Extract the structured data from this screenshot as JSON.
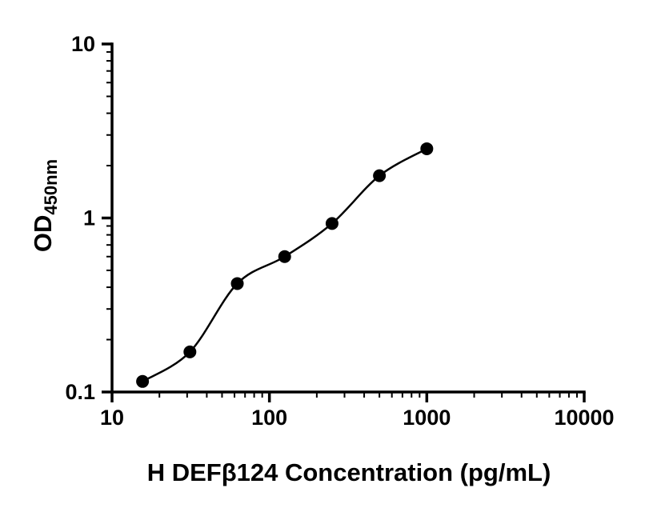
{
  "chart_data": {
    "type": "scatter",
    "title": "",
    "xlabel": "H DEFβ124 Concentration (pg/mL)",
    "ylabel_main": "OD",
    "ylabel_sub": "450nm",
    "x_scale": "log",
    "y_scale": "log",
    "xlim": [
      10,
      10000
    ],
    "ylim": [
      0.1,
      10
    ],
    "x_ticks": [
      10,
      100,
      1000,
      10000
    ],
    "x_tick_labels": [
      "10",
      "100",
      "1000",
      "10000"
    ],
    "y_ticks": [
      0.1,
      1,
      10
    ],
    "y_tick_labels": [
      "0.1",
      "1",
      "10"
    ],
    "points": [
      {
        "x": 15.625,
        "y": 0.115
      },
      {
        "x": 31.25,
        "y": 0.17
      },
      {
        "x": 62.5,
        "y": 0.42
      },
      {
        "x": 125,
        "y": 0.6
      },
      {
        "x": 250,
        "y": 0.93
      },
      {
        "x": 500,
        "y": 1.75
      },
      {
        "x": 1000,
        "y": 2.5
      }
    ],
    "curve_style": "smooth-through-points",
    "marker_color": "#000000",
    "line_color": "#000000",
    "axis_color": "#000000",
    "grid": false,
    "legend": null
  }
}
